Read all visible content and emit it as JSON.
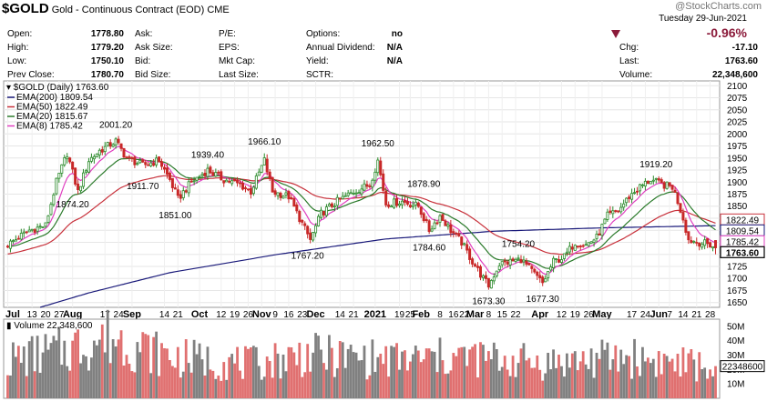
{
  "header": {
    "symbol": "$GOLD",
    "name": "Gold - Continuous Contract (EOD)",
    "exchange": "CME",
    "watermark": "@StockCharts.com",
    "date": "Tuesday 29-Jun-2021",
    "change_pct": "-0.96%",
    "fields_col1": [
      {
        "label": "Open:",
        "value": "1778.80"
      },
      {
        "label": "High:",
        "value": "1779.20"
      },
      {
        "label": "Low:",
        "value": "1750.10"
      },
      {
        "label": "Prev Close:",
        "value": "1780.70"
      }
    ],
    "fields_col2": [
      {
        "label": "Ask:",
        "value": ""
      },
      {
        "label": "Ask Size:",
        "value": ""
      },
      {
        "label": "Bid:",
        "value": ""
      },
      {
        "label": "Bid Size:",
        "value": ""
      }
    ],
    "fields_col3": [
      {
        "label": "P/E:",
        "value": ""
      },
      {
        "label": "EPS:",
        "value": ""
      },
      {
        "label": "Mkt Cap:",
        "value": ""
      },
      {
        "label": "Last Size:",
        "value": ""
      }
    ],
    "fields_col4": [
      {
        "label": "Options:",
        "value": "no"
      },
      {
        "label": "Annual Dividend:",
        "value": "N/A"
      },
      {
        "label": "Yield:",
        "value": "N/A"
      },
      {
        "label": "SCTR:",
        "value": ""
      }
    ],
    "fields_col5": [
      {
        "label": "Chg:",
        "value": "-17.10"
      },
      {
        "label": "Last:",
        "value": "1763.60"
      },
      {
        "label": "Volume:",
        "value": "22,348,600"
      }
    ]
  },
  "colors": {
    "ema200": "#1a1a7a",
    "ema50": "#c8323c",
    "ema20": "#2a7a2a",
    "ema8": "#e040c0",
    "up_candle": "#2a8a2a",
    "down_candle": "#c82828",
    "vol_up": "#808080",
    "vol_down": "#e07070",
    "last_price_box": "#000000"
  },
  "chart_data": [
    {
      "type": "candlestick",
      "title": "$GOLD (Daily) 1763.60",
      "ylim": [
        1640,
        2110
      ],
      "y_ticks": [
        2100,
        2075,
        2050,
        2025,
        2000,
        1975,
        1950,
        1925,
        1900,
        1875,
        1850,
        1825,
        1800,
        1775,
        1750,
        1725,
        1700,
        1675,
        1650
      ],
      "x_tick_labels": [
        {
          "label": "Jul",
          "bold": true,
          "index": 0
        },
        {
          "label": "13",
          "bold": false,
          "index": 9
        },
        {
          "label": "20",
          "bold": false,
          "index": 14
        },
        {
          "label": "27",
          "bold": false,
          "index": 19
        },
        {
          "label": "Aug",
          "bold": true,
          "index": 24
        },
        {
          "label": "17",
          "bold": false,
          "index": 36
        },
        {
          "label": "24",
          "bold": false,
          "index": 41
        },
        {
          "label": "Sep",
          "bold": true,
          "index": 46
        },
        {
          "label": "14",
          "bold": false,
          "index": 58
        },
        {
          "label": "21",
          "bold": false,
          "index": 63
        },
        {
          "label": "Oct",
          "bold": true,
          "index": 71
        },
        {
          "label": "12",
          "bold": false,
          "index": 79
        },
        {
          "label": "19",
          "bold": false,
          "index": 84
        },
        {
          "label": "26",
          "bold": false,
          "index": 89
        },
        {
          "label": "Nov",
          "bold": true,
          "index": 94
        },
        {
          "label": "9",
          "bold": false,
          "index": 99
        },
        {
          "label": "16",
          "bold": false,
          "index": 104
        },
        {
          "label": "23",
          "bold": false,
          "index": 109
        },
        {
          "label": "Dec",
          "bold": true,
          "index": 114
        },
        {
          "label": "14",
          "bold": false,
          "index": 123
        },
        {
          "label": "21",
          "bold": false,
          "index": 128
        },
        {
          "label": "2021",
          "bold": true,
          "index": 136
        },
        {
          "label": "19",
          "bold": false,
          "index": 145
        },
        {
          "label": "25",
          "bold": false,
          "index": 149
        },
        {
          "label": "Feb",
          "bold": true,
          "index": 153
        },
        {
          "label": "8",
          "bold": false,
          "index": 160
        },
        {
          "label": "16",
          "bold": false,
          "index": 165
        },
        {
          "label": "22",
          "bold": false,
          "index": 169
        },
        {
          "label": "Mar",
          "bold": true,
          "index": 173
        },
        {
          "label": "8",
          "bold": false,
          "index": 178
        },
        {
          "label": "15",
          "bold": false,
          "index": 183
        },
        {
          "label": "22",
          "bold": false,
          "index": 188
        },
        {
          "label": "Apr",
          "bold": true,
          "index": 197
        },
        {
          "label": "12",
          "bold": false,
          "index": 205
        },
        {
          "label": "19",
          "bold": false,
          "index": 210
        },
        {
          "label": "26",
          "bold": false,
          "index": 215
        },
        {
          "label": "May",
          "bold": true,
          "index": 220
        },
        {
          "label": "17",
          "bold": false,
          "index": 231
        },
        {
          "label": "24",
          "bold": false,
          "index": 236
        },
        {
          "label": "Jun",
          "bold": true,
          "index": 241
        },
        {
          "label": "7",
          "bold": false,
          "index": 245
        },
        {
          "label": "14",
          "bold": false,
          "index": 250
        },
        {
          "label": "21",
          "bold": false,
          "index": 255
        },
        {
          "label": "28",
          "bold": false,
          "index": 260
        }
      ],
      "legend": [
        {
          "name": "EMA(200) 1809.54",
          "color_key": "ema200"
        },
        {
          "name": "EMA(50) 1822.49",
          "color_key": "ema50"
        },
        {
          "name": "EMA(20) 1815.67",
          "color_key": "ema20"
        },
        {
          "name": "EMA(8) 1785.42",
          "color_key": "ema8"
        }
      ],
      "annotations": [
        {
          "text": "2001.20",
          "index": 40,
          "price": 2001.2,
          "pos": "above"
        },
        {
          "text": "1874.20",
          "index": 24,
          "price": 1874.2,
          "pos": "below"
        },
        {
          "text": "1911.70",
          "index": 50,
          "price": 1911.7,
          "pos": "below"
        },
        {
          "text": "1939.40",
          "index": 74,
          "price": 1939.4,
          "pos": "above"
        },
        {
          "text": "1851.00",
          "index": 62,
          "price": 1851.0,
          "pos": "below"
        },
        {
          "text": "1966.10",
          "index": 95,
          "price": 1966.1,
          "pos": "above"
        },
        {
          "text": "1767.20",
          "index": 111,
          "price": 1767.2,
          "pos": "below"
        },
        {
          "text": "1962.50",
          "index": 137,
          "price": 1962.5,
          "pos": "above"
        },
        {
          "text": "1878.90",
          "index": 154,
          "price": 1878.9,
          "pos": "above"
        },
        {
          "text": "1784.60",
          "index": 156,
          "price": 1784.6,
          "pos": "below"
        },
        {
          "text": "1754.20",
          "index": 189,
          "price": 1754.2,
          "pos": "above"
        },
        {
          "text": "1673.30",
          "index": 178,
          "price": 1673.3,
          "pos": "below"
        },
        {
          "text": "1677.30",
          "index": 198,
          "price": 1677.3,
          "pos": "below"
        },
        {
          "text": "1919.20",
          "index": 240,
          "price": 1919.2,
          "pos": "above"
        }
      ],
      "price_labels": [
        {
          "text": "1822.49",
          "price": 1822.49,
          "color_key": "ema50"
        },
        {
          "text": "1809.54",
          "price": 1809.54,
          "color_key": "ema200"
        },
        {
          "text": "1785.42",
          "price": 1785.42,
          "color_key": "ema8"
        },
        {
          "text": "1763.60",
          "price": 1763.6,
          "color_key": "last_price_box",
          "bold": true
        }
      ],
      "price_anchors": [
        {
          "index": 0,
          "close": 1770
        },
        {
          "index": 8,
          "close": 1800
        },
        {
          "index": 14,
          "close": 1810
        },
        {
          "index": 18,
          "close": 1900
        },
        {
          "index": 22,
          "close": 1960
        },
        {
          "index": 26,
          "close": 1880
        },
        {
          "index": 30,
          "close": 1945
        },
        {
          "index": 34,
          "close": 1965
        },
        {
          "index": 40,
          "close": 1985
        },
        {
          "index": 44,
          "close": 1950
        },
        {
          "index": 50,
          "close": 1935
        },
        {
          "index": 56,
          "close": 1945
        },
        {
          "index": 60,
          "close": 1905
        },
        {
          "index": 63,
          "close": 1865
        },
        {
          "index": 68,
          "close": 1900
        },
        {
          "index": 74,
          "close": 1925
        },
        {
          "index": 80,
          "close": 1905
        },
        {
          "index": 86,
          "close": 1895
        },
        {
          "index": 90,
          "close": 1880
        },
        {
          "index": 95,
          "close": 1945
        },
        {
          "index": 98,
          "close": 1880
        },
        {
          "index": 104,
          "close": 1870
        },
        {
          "index": 108,
          "close": 1825
        },
        {
          "index": 112,
          "close": 1780
        },
        {
          "index": 116,
          "close": 1835
        },
        {
          "index": 122,
          "close": 1860
        },
        {
          "index": 128,
          "close": 1880
        },
        {
          "index": 134,
          "close": 1895
        },
        {
          "index": 137,
          "close": 1945
        },
        {
          "index": 140,
          "close": 1855
        },
        {
          "index": 146,
          "close": 1860
        },
        {
          "index": 152,
          "close": 1850
        },
        {
          "index": 156,
          "close": 1800
        },
        {
          "index": 160,
          "close": 1830
        },
        {
          "index": 164,
          "close": 1800
        },
        {
          "index": 168,
          "close": 1775
        },
        {
          "index": 172,
          "close": 1735
        },
        {
          "index": 176,
          "close": 1700
        },
        {
          "index": 178,
          "close": 1685
        },
        {
          "index": 182,
          "close": 1730
        },
        {
          "index": 186,
          "close": 1735
        },
        {
          "index": 190,
          "close": 1740
        },
        {
          "index": 194,
          "close": 1715
        },
        {
          "index": 198,
          "close": 1690
        },
        {
          "index": 202,
          "close": 1735
        },
        {
          "index": 206,
          "close": 1745
        },
        {
          "index": 210,
          "close": 1775
        },
        {
          "index": 214,
          "close": 1770
        },
        {
          "index": 218,
          "close": 1785
        },
        {
          "index": 222,
          "close": 1830
        },
        {
          "index": 226,
          "close": 1840
        },
        {
          "index": 230,
          "close": 1870
        },
        {
          "index": 234,
          "close": 1890
        },
        {
          "index": 238,
          "close": 1905
        },
        {
          "index": 242,
          "close": 1895
        },
        {
          "index": 246,
          "close": 1890
        },
        {
          "index": 248,
          "close": 1860
        },
        {
          "index": 250,
          "close": 1825
        },
        {
          "index": 252,
          "close": 1780
        },
        {
          "index": 256,
          "close": 1775
        },
        {
          "index": 260,
          "close": 1770
        },
        {
          "index": 262,
          "close": 1763.6
        }
      ],
      "ema200_anchors": [
        {
          "index": 12,
          "value": 1640
        },
        {
          "index": 30,
          "value": 1670
        },
        {
          "index": 60,
          "value": 1712
        },
        {
          "index": 100,
          "value": 1750
        },
        {
          "index": 140,
          "value": 1782
        },
        {
          "index": 180,
          "value": 1798
        },
        {
          "index": 220,
          "value": 1805
        },
        {
          "index": 262,
          "value": 1809.54
        }
      ]
    },
    {
      "type": "bar",
      "title": "Volume 22,348,600",
      "ylim": [
        0,
        55
      ],
      "y_ticks_label": [
        "50M",
        "40M",
        "30M",
        "20M",
        "10M"
      ],
      "y_ticks_value": [
        50,
        40,
        30,
        20,
        10
      ],
      "current_volume_label": "22348600",
      "current_volume": 22.35,
      "volume_anchors_millions": [
        {
          "index": 0,
          "value": 28
        },
        {
          "index": 20,
          "value": 35
        },
        {
          "index": 38,
          "value": 45
        },
        {
          "index": 60,
          "value": 30
        },
        {
          "index": 90,
          "value": 25
        },
        {
          "index": 110,
          "value": 32
        },
        {
          "index": 140,
          "value": 28
        },
        {
          "index": 170,
          "value": 30
        },
        {
          "index": 200,
          "value": 26
        },
        {
          "index": 230,
          "value": 30
        },
        {
          "index": 262,
          "value": 22.35
        }
      ]
    }
  ]
}
